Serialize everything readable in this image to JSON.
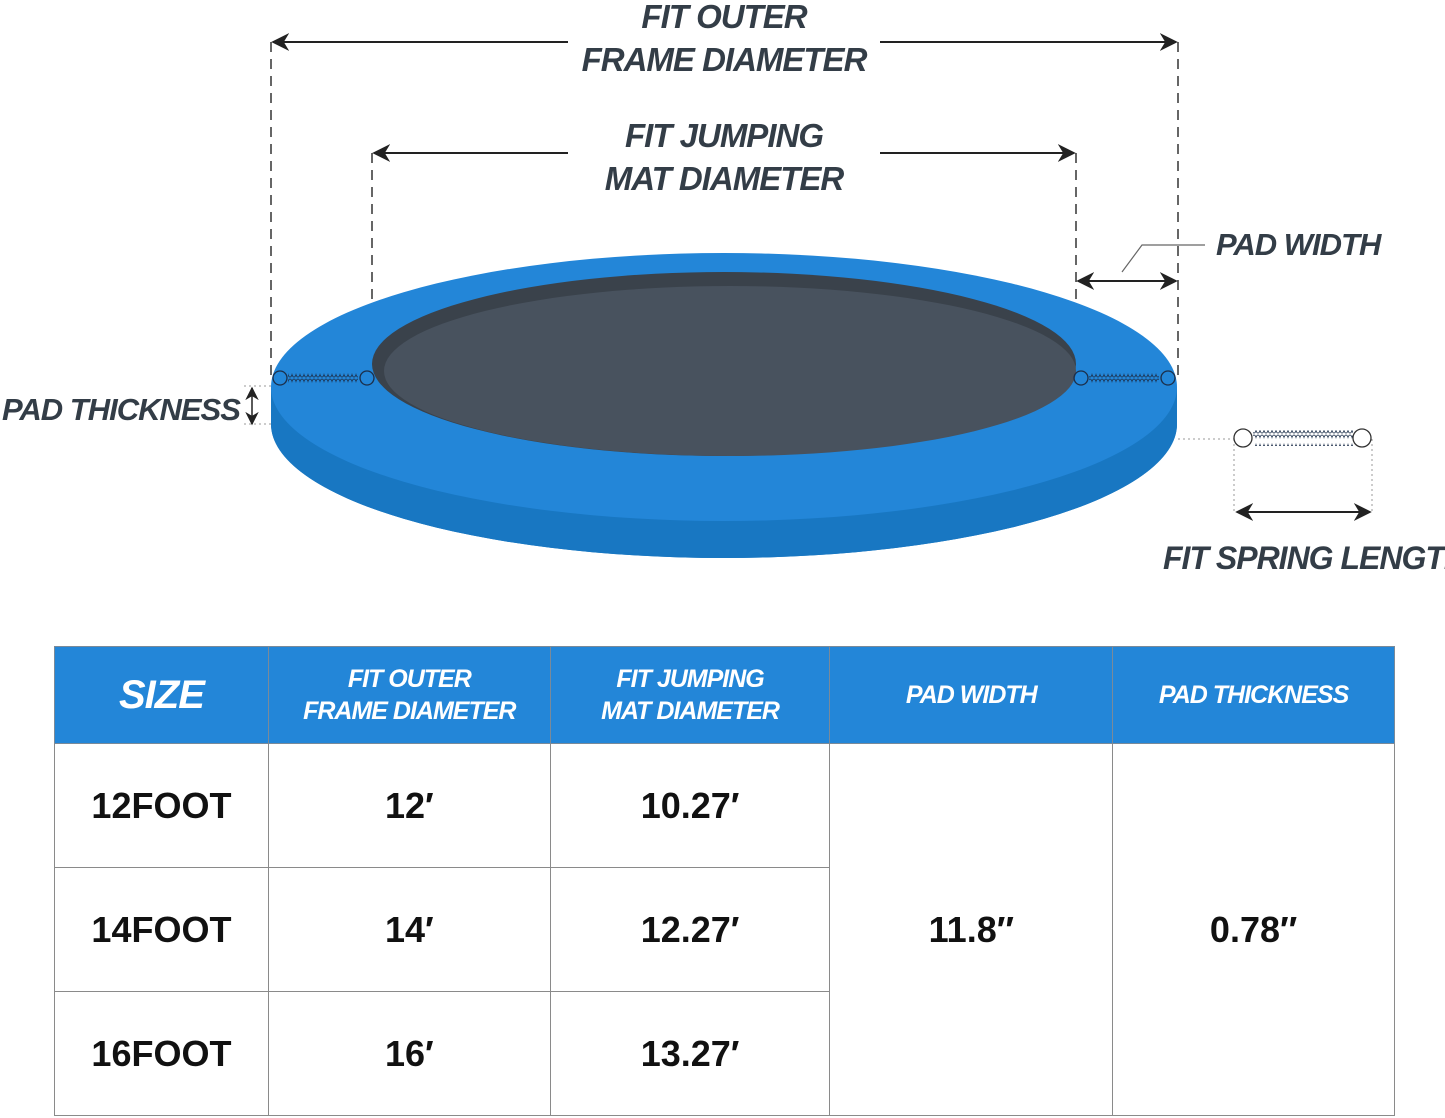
{
  "diagram": {
    "labels": {
      "outer_line1": "FIT OUTER",
      "outer_line2": "FRAME DIAMETER",
      "mat_line1": "FIT JUMPING",
      "mat_line2": "MAT DIAMETER",
      "pad_width": "PAD WIDTH",
      "pad_thickness": "PAD THICKNESS",
      "spring_length": "FIT SPRING LENGTH"
    },
    "colors": {
      "pad": "#2386d8",
      "pad_side": "#1877c2",
      "mat": "#48525e",
      "mat_rim": "#3a424b",
      "text": "#333d47"
    }
  },
  "table": {
    "headers": [
      {
        "line1": "SIZE",
        "line2": ""
      },
      {
        "line1": "FIT OUTER",
        "line2": "FRAME DIAMETER"
      },
      {
        "line1": "FIT JUMPING",
        "line2": "MAT DIAMETER"
      },
      {
        "line1": "PAD WIDTH",
        "line2": ""
      },
      {
        "line1": "PAD THICKNESS",
        "line2": ""
      }
    ],
    "rows": [
      {
        "size": "12FOOT",
        "outer": "12′",
        "mat": "10.27′"
      },
      {
        "size": "14FOOT",
        "outer": "14′",
        "mat": "12.27′"
      },
      {
        "size": "16FOOT",
        "outer": "16′",
        "mat": "13.27′"
      }
    ],
    "pad_width": "11.8″",
    "pad_thickness": "0.78″"
  }
}
